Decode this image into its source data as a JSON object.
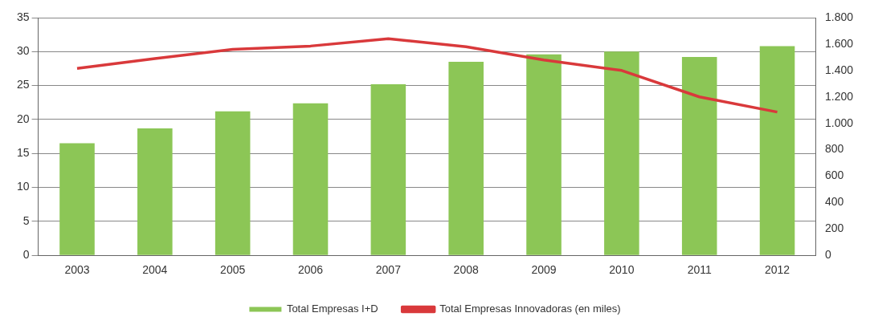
{
  "chart_data": {
    "type": "bar",
    "categories": [
      "2003",
      "2004",
      "2005",
      "2006",
      "2007",
      "2008",
      "2009",
      "2010",
      "2011",
      "2012"
    ],
    "series": [
      {
        "name": "Total Empresas I+D",
        "color": "#8cc656",
        "values": [
          16.5,
          18.7,
          21.2,
          22.4,
          25.2,
          28.5,
          29.6,
          30,
          29.2,
          30.8
        ]
      },
      {
        "name": "Total Empresas Innovadoras (en miles)",
        "type": "line",
        "axis": "y2",
        "color": "#d9393b",
        "values": [
          1415,
          1490,
          1560,
          1585,
          1640,
          1580,
          1480,
          1400,
          1200,
          1085
        ]
      }
    ],
    "ylim": [
      0,
      35
    ],
    "yticks": [
      0,
      5,
      10,
      15,
      20,
      25,
      30,
      35
    ],
    "y2lim": [
      0,
      1800
    ],
    "y2ticks": [
      0,
      {
        "value": 200,
        "label": "200"
      },
      {
        "value": 400,
        "label": "400"
      },
      {
        "value": 600,
        "label": "600"
      },
      {
        "value": 800,
        "label": "800"
      },
      {
        "value": 1000,
        "label": "1.000"
      },
      {
        "value": 1200,
        "label": "1.200"
      },
      {
        "value": 1400,
        "label": "1.400"
      },
      {
        "value": 1600,
        "label": "1.600"
      },
      {
        "value": 1800,
        "label": "1.800"
      }
    ],
    "grid": "y",
    "legend": "bottom",
    "marker": "none"
  }
}
